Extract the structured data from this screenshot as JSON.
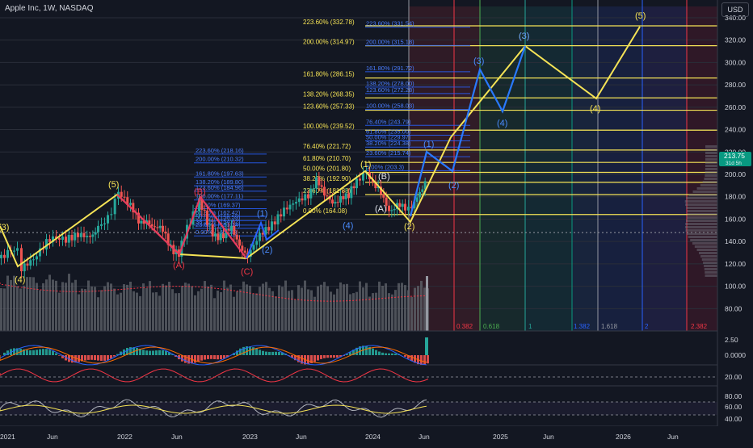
{
  "header": {
    "symbol_line": "Apple Inc, 1W, NASDAQ",
    "currency_button": "USD"
  },
  "colors": {
    "bg": "#131722",
    "grid": "#2a2e39",
    "text": "#d1d4dc",
    "up": "#26a69a",
    "down": "#ef5350",
    "yellow": "#f5e356",
    "blue_wave": "#2962ff",
    "red_wave": "#e53a5e",
    "volume": "#5d6068",
    "price_badge": "#089981"
  },
  "price_axis": {
    "ticks": [
      "340.00",
      "320.00",
      "300.00",
      "280.00",
      "260.00",
      "240.00",
      "220.00",
      "200.00",
      "180.00",
      "160.00",
      "140.00",
      "120.00",
      "100.00",
      "80.00"
    ],
    "current_price": "213.75",
    "current_sub": "31d 5h"
  },
  "macd_axis": {
    "ticks": [
      "2.50",
      "0.0000"
    ]
  },
  "stoch_axis": {
    "ticks": [
      "20.00"
    ]
  },
  "rsi_axis": {
    "ticks": [
      "80.00",
      "60.00",
      "40.00"
    ]
  },
  "time_axis": {
    "labels": [
      "2021",
      "Jun",
      "2022",
      "Jun",
      "2023",
      "Jun",
      "2024",
      "Jun",
      "2025",
      "Jun",
      "2026",
      "Jun"
    ]
  },
  "fib_left": {
    "labels": [
      "223.60% (218.16)",
      "200.00% (210.32)",
      "161.80% (197.63)",
      "138.20% (189.80)",
      "123.60% (184.96)",
      "100.00% (177.11)",
      "78.40% (169.37)",
      "61.80% (162.42)",
      "50.00% (158.59)",
      "38.20% (154.62)",
      "23.60% (151.74)",
      "0.00% (145.00)"
    ]
  },
  "fib_main": {
    "labels": [
      "223.60% (332.78)",
      "200.00% (314.97)",
      "161.80% (286.15)",
      "138.20% (268.35)",
      "123.60% (257.33)",
      "100.00% (239.52)",
      "76.40% (221.72)",
      "61.80% (210.70)",
      "50.00% (201.80)",
      "38.20% (192.90)",
      "23.60% (181.88)",
      "0.00% (164.08)"
    ]
  },
  "fib_right": {
    "labels": [
      "223.60% (331.54)",
      "200.00% (315.18)",
      "161.80% (291.72)",
      "138.20% (278.00)",
      "123.60% (272.28)",
      "100.00% (258.03)",
      "76.40% (243.79)",
      "61.80% (235.00)",
      "50.00% (229.97)",
      "38.20% (224.38)",
      "23.60% (215.74)",
      "0.00% (203.3)"
    ]
  },
  "time_fib": {
    "labels": [
      "0.382",
      "0.618",
      "1",
      "1.382",
      "1.618",
      "2",
      "2.382"
    ]
  },
  "wave_labels": {
    "yellow": [
      "(3)",
      "(4)",
      "(5)",
      "(1)",
      "(2)",
      "(3)",
      "(4)",
      "(5)"
    ],
    "red": [
      "(B)",
      "(A)",
      "(C)"
    ],
    "white": [
      "(A)",
      "(B)"
    ],
    "blue": [
      "(1)",
      "(2)",
      "(4)",
      "(1)",
      "(2)",
      "(3)",
      "(4)",
      "(3)"
    ]
  }
}
